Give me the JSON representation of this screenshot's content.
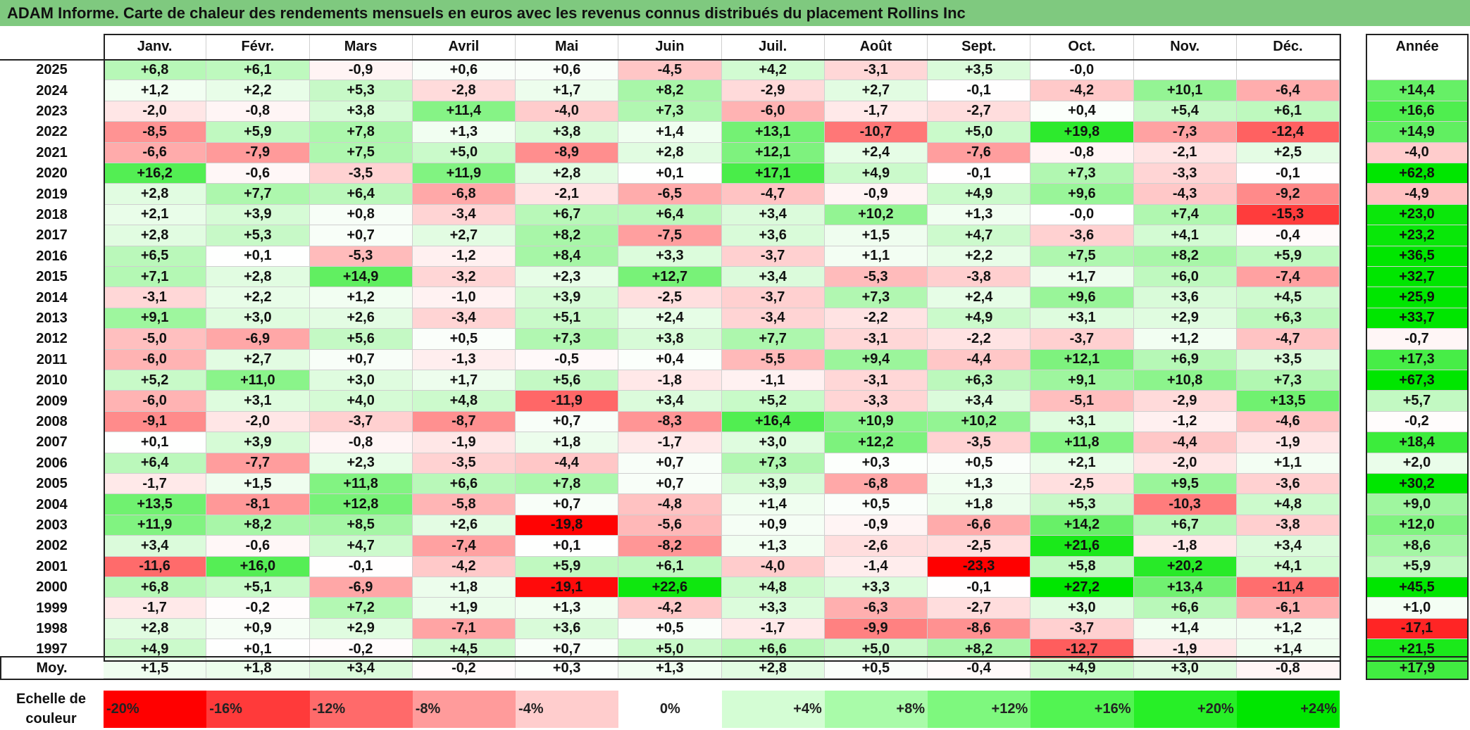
{
  "title": "ADAM Informe. Carte de chaleur des rendements mensuels en euros avec les revenus connus distribués du placement Rollins Inc",
  "year_header": "Année",
  "avg_label": "Moy.",
  "legend_label": "Echelle de couleur",
  "chart_data": {
    "type": "heatmap",
    "months": [
      "Janv.",
      "Févr.",
      "Mars",
      "Avril",
      "Mai",
      "Juin",
      "Juil.",
      "Août",
      "Sept.",
      "Oct.",
      "Nov.",
      "Déc."
    ],
    "rows": [
      {
        "year": "2025",
        "values": [
          "+6,8",
          "+6,1",
          "-0,9",
          "+0,6",
          "+0,6",
          "-4,5",
          "+4,2",
          "-3,1",
          "+3,5",
          "-0,0",
          "",
          ""
        ],
        "annual": ""
      },
      {
        "year": "2024",
        "values": [
          "+1,2",
          "+2,2",
          "+5,3",
          "-2,8",
          "+1,7",
          "+8,2",
          "-2,9",
          "+2,7",
          "-0,1",
          "-4,2",
          "+10,1",
          "-6,4"
        ],
        "annual": "+14,4"
      },
      {
        "year": "2023",
        "values": [
          "-2,0",
          "-0,8",
          "+3,8",
          "+11,4",
          "-4,0",
          "+7,3",
          "-6,0",
          "-1,7",
          "-2,7",
          "+0,4",
          "+5,4",
          "+6,1"
        ],
        "annual": "+16,6"
      },
      {
        "year": "2022",
        "values": [
          "-8,5",
          "+5,9",
          "+7,8",
          "+1,3",
          "+3,8",
          "+1,4",
          "+13,1",
          "-10,7",
          "+5,0",
          "+19,8",
          "-7,3",
          "-12,4"
        ],
        "annual": "+14,9"
      },
      {
        "year": "2021",
        "values": [
          "-6,6",
          "-7,9",
          "+7,5",
          "+5,0",
          "-8,9",
          "+2,8",
          "+12,1",
          "+2,4",
          "-7,6",
          "-0,8",
          "-2,1",
          "+2,5"
        ],
        "annual": "-4,0"
      },
      {
        "year": "2020",
        "values": [
          "+16,2",
          "-0,6",
          "-3,5",
          "+11,9",
          "+2,8",
          "+0,1",
          "+17,1",
          "+4,9",
          "-0,1",
          "+7,3",
          "-3,3",
          "-0,1"
        ],
        "annual": "+62,8"
      },
      {
        "year": "2019",
        "values": [
          "+2,8",
          "+7,7",
          "+6,4",
          "-6,8",
          "-2,1",
          "-6,5",
          "-4,7",
          "-0,9",
          "+4,9",
          "+9,6",
          "-4,3",
          "-9,2"
        ],
        "annual": "-4,9"
      },
      {
        "year": "2018",
        "values": [
          "+2,1",
          "+3,9",
          "+0,8",
          "-3,4",
          "+6,7",
          "+6,4",
          "+3,4",
          "+10,2",
          "+1,3",
          "-0,0",
          "+7,4",
          "-15,3"
        ],
        "annual": "+23,0"
      },
      {
        "year": "2017",
        "values": [
          "+2,8",
          "+5,3",
          "+0,7",
          "+2,7",
          "+8,2",
          "-7,5",
          "+3,6",
          "+1,5",
          "+4,7",
          "-3,6",
          "+4,1",
          "-0,4"
        ],
        "annual": "+23,2"
      },
      {
        "year": "2016",
        "values": [
          "+6,5",
          "+0,1",
          "-5,3",
          "-1,2",
          "+8,4",
          "+3,3",
          "-3,7",
          "+1,1",
          "+2,2",
          "+7,5",
          "+8,2",
          "+5,9"
        ],
        "annual": "+36,5"
      },
      {
        "year": "2015",
        "values": [
          "+7,1",
          "+2,8",
          "+14,9",
          "-3,2",
          "+2,3",
          "+12,7",
          "+3,4",
          "-5,3",
          "-3,8",
          "+1,7",
          "+6,0",
          "-7,4"
        ],
        "annual": "+32,7"
      },
      {
        "year": "2014",
        "values": [
          "-3,1",
          "+2,2",
          "+1,2",
          "-1,0",
          "+3,9",
          "-2,5",
          "-3,7",
          "+7,3",
          "+2,4",
          "+9,6",
          "+3,6",
          "+4,5"
        ],
        "annual": "+25,9"
      },
      {
        "year": "2013",
        "values": [
          "+9,1",
          "+3,0",
          "+2,6",
          "-3,4",
          "+5,1",
          "+2,4",
          "-3,4",
          "-2,2",
          "+4,9",
          "+3,1",
          "+2,9",
          "+6,3"
        ],
        "annual": "+33,7"
      },
      {
        "year": "2012",
        "values": [
          "-5,0",
          "-6,9",
          "+5,6",
          "+0,5",
          "+7,3",
          "+3,8",
          "+7,7",
          "-3,1",
          "-2,2",
          "-3,7",
          "+1,2",
          "-4,7"
        ],
        "annual": "-0,7"
      },
      {
        "year": "2011",
        "values": [
          "-6,0",
          "+2,7",
          "+0,7",
          "-1,3",
          "-0,5",
          "+0,4",
          "-5,5",
          "+9,4",
          "-4,4",
          "+12,1",
          "+6,9",
          "+3,5"
        ],
        "annual": "+17,3"
      },
      {
        "year": "2010",
        "values": [
          "+5,2",
          "+11,0",
          "+3,0",
          "+1,7",
          "+5,6",
          "-1,8",
          "-1,1",
          "-3,1",
          "+6,3",
          "+9,1",
          "+10,8",
          "+7,3"
        ],
        "annual": "+67,3"
      },
      {
        "year": "2009",
        "values": [
          "-6,0",
          "+3,1",
          "+4,0",
          "+4,8",
          "-11,9",
          "+3,4",
          "+5,2",
          "-3,3",
          "+3,4",
          "-5,1",
          "-2,9",
          "+13,5"
        ],
        "annual": "+5,7"
      },
      {
        "year": "2008",
        "values": [
          "-9,1",
          "-2,0",
          "-3,7",
          "-8,7",
          "+0,7",
          "-8,3",
          "+16,4",
          "+10,9",
          "+10,2",
          "+3,1",
          "-1,2",
          "-4,6"
        ],
        "annual": "-0,2"
      },
      {
        "year": "2007",
        "values": [
          "+0,1",
          "+3,9",
          "-0,8",
          "-1,9",
          "+1,8",
          "-1,7",
          "+3,0",
          "+12,2",
          "-3,5",
          "+11,8",
          "-4,4",
          "-1,9"
        ],
        "annual": "+18,4"
      },
      {
        "year": "2006",
        "values": [
          "+6,4",
          "-7,7",
          "+2,3",
          "-3,5",
          "-4,4",
          "+0,7",
          "+7,3",
          "+0,3",
          "+0,5",
          "+2,1",
          "-2,0",
          "+1,1"
        ],
        "annual": "+2,0"
      },
      {
        "year": "2005",
        "values": [
          "-1,7",
          "+1,5",
          "+11,8",
          "+6,6",
          "+7,8",
          "+0,7",
          "+3,9",
          "-6,8",
          "+1,3",
          "-2,5",
          "+9,5",
          "-3,6"
        ],
        "annual": "+30,2"
      },
      {
        "year": "2004",
        "values": [
          "+13,5",
          "-8,1",
          "+12,8",
          "-5,8",
          "+0,7",
          "-4,8",
          "+1,4",
          "+0,5",
          "+1,8",
          "+5,3",
          "-10,3",
          "+4,8"
        ],
        "annual": "+9,0"
      },
      {
        "year": "2003",
        "values": [
          "+11,9",
          "+8,2",
          "+8,5",
          "+2,6",
          "-19,8",
          "-5,6",
          "+0,9",
          "-0,9",
          "-6,6",
          "+14,2",
          "+6,7",
          "-3,8"
        ],
        "annual": "+12,0"
      },
      {
        "year": "2002",
        "values": [
          "+3,4",
          "-0,6",
          "+4,7",
          "-7,4",
          "+0,1",
          "-8,2",
          "+1,3",
          "-2,6",
          "-2,5",
          "+21,6",
          "-1,8",
          "+3,4"
        ],
        "annual": "+8,6"
      },
      {
        "year": "2001",
        "values": [
          "-11,6",
          "+16,0",
          "-0,1",
          "-4,2",
          "+5,9",
          "+6,1",
          "-4,0",
          "-1,4",
          "-23,3",
          "+5,8",
          "+20,2",
          "+4,1"
        ],
        "annual": "+5,9"
      },
      {
        "year": "2000",
        "values": [
          "+6,8",
          "+5,1",
          "-6,9",
          "+1,8",
          "-19,1",
          "+22,6",
          "+4,8",
          "+3,3",
          "-0,1",
          "+27,2",
          "+13,4",
          "-11,4"
        ],
        "annual": "+45,5"
      },
      {
        "year": "1999",
        "values": [
          "-1,7",
          "-0,2",
          "+7,2",
          "+1,9",
          "+1,3",
          "-4,2",
          "+3,3",
          "-6,3",
          "-2,7",
          "+3,0",
          "+6,6",
          "-6,1"
        ],
        "annual": "+1,0"
      },
      {
        "year": "1998",
        "values": [
          "+2,8",
          "+0,9",
          "+2,9",
          "-7,1",
          "+3,6",
          "+0,5",
          "-1,7",
          "-9,9",
          "-8,6",
          "-3,7",
          "+1,4",
          "+1,2"
        ],
        "annual": "-17,1"
      },
      {
        "year": "1997",
        "values": [
          "+4,9",
          "+0,1",
          "-0,2",
          "+4,5",
          "+0,7",
          "+5,0",
          "+6,6",
          "+5,0",
          "+8,2",
          "-12,7",
          "-1,9",
          "+1,4"
        ],
        "annual": "+21,5"
      }
    ],
    "averages": {
      "values": [
        "+1,5",
        "+1,8",
        "+3,4",
        "-0,2",
        "+0,3",
        "+1,3",
        "+2,8",
        "+0,5",
        "-0,4",
        "+4,9",
        "+3,0",
        "-0,8"
      ],
      "annual": "+17,9"
    },
    "color_scale": [
      {
        "label": "-20%",
        "color": "#ff0000"
      },
      {
        "label": "-16%",
        "color": "#ff3a3a"
      },
      {
        "label": "-12%",
        "color": "#ff6a6a"
      },
      {
        "label": "-8%",
        "color": "#ff9b9b"
      },
      {
        "label": "-4%",
        "color": "#ffcdcd"
      },
      {
        "label": "0%",
        "color": "#ffffff"
      },
      {
        "label": "+4%",
        "color": "#d4fdd4"
      },
      {
        "label": "+8%",
        "color": "#a9fba9"
      },
      {
        "label": "+12%",
        "color": "#7ef87e"
      },
      {
        "label": "+16%",
        "color": "#52f452"
      },
      {
        "label": "+20%",
        "color": "#27ef27"
      },
      {
        "label": "+24%",
        "color": "#00e600"
      }
    ]
  }
}
